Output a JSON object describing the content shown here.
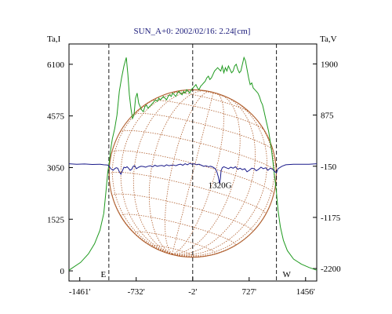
{
  "chart_data": {
    "type": "line",
    "title": "SUN_A+0: 2002/02/16: 2.24[cm]",
    "xlabel": "",
    "left_axis_label": "Ta,I",
    "right_axis_label": "Ta,V",
    "xlim": [
      -1600,
      1600
    ],
    "ylim_left": [
      -300,
      6700
    ],
    "ylim_right": [
      -2450,
      2300
    ],
    "x_ticks": [
      {
        "value": -1461,
        "label": "-1461'"
      },
      {
        "value": -732,
        "label": "-732'"
      },
      {
        "value": -2,
        "label": "-2'"
      },
      {
        "value": 727,
        "label": "727'"
      },
      {
        "value": 1456,
        "label": "1456'"
      }
    ],
    "left_ticks": [
      {
        "value": 0,
        "label": "0"
      },
      {
        "value": 1525,
        "label": "1525"
      },
      {
        "value": 3050,
        "label": "3050"
      },
      {
        "value": 4575,
        "label": "4575"
      },
      {
        "value": 6100,
        "label": "6100"
      }
    ],
    "right_ticks": [
      {
        "value": -2200,
        "label": "-2200"
      },
      {
        "value": -1175,
        "label": "-1175"
      },
      {
        "value": -150,
        "label": "-150"
      },
      {
        "value": 875,
        "label": "875"
      },
      {
        "value": 1900,
        "label": "1900"
      }
    ],
    "vertical_markers": [
      {
        "x": -1085,
        "label": "E"
      },
      {
        "x": -2,
        "label": ""
      },
      {
        "x": 1080,
        "label": "W"
      }
    ],
    "annotation": {
      "text": "1320G",
      "x": 350,
      "y_right": -400
    },
    "disk": {
      "center_x": -2,
      "radius_x": 1080,
      "color": "#b06030"
    },
    "series": [
      {
        "name": "",
        "axis": "left",
        "color": "#1f9a1f",
        "x": [
          -1600,
          -1450,
          -1350,
          -1270,
          -1200,
          -1150,
          -1120,
          -1100,
          -1080,
          -1060,
          -1040,
          -1010,
          -980,
          -950,
          -920,
          -890,
          -860,
          -840,
          -820,
          -800,
          -780,
          -760,
          -740,
          -720,
          -700,
          -680,
          -660,
          -640,
          -620,
          -600,
          -580,
          -560,
          -540,
          -520,
          -500,
          -480,
          -460,
          -440,
          -420,
          -400,
          -380,
          -360,
          -340,
          -320,
          -300,
          -280,
          -260,
          -240,
          -220,
          -200,
          -180,
          -160,
          -140,
          -120,
          -100,
          -80,
          -60,
          -40,
          -20,
          0,
          20,
          40,
          60,
          80,
          100,
          120,
          140,
          160,
          180,
          200,
          220,
          240,
          260,
          280,
          300,
          320,
          340,
          360,
          380,
          400,
          420,
          440,
          460,
          480,
          500,
          520,
          540,
          560,
          580,
          600,
          620,
          640,
          660,
          680,
          700,
          720,
          740,
          760,
          780,
          800,
          820,
          840,
          860,
          880,
          900,
          920,
          940,
          960,
          980,
          1000,
          1020,
          1040,
          1060,
          1080,
          1100,
          1130,
          1170,
          1220,
          1300,
          1400,
          1500,
          1600
        ],
        "y": [
          20,
          250,
          500,
          800,
          1200,
          1700,
          2400,
          2900,
          3200,
          3600,
          3900,
          4200,
          4600,
          5300,
          5700,
          6050,
          6300,
          5800,
          5200,
          4800,
          4500,
          4600,
          5100,
          5250,
          4950,
          4850,
          4750,
          4700,
          4850,
          4900,
          4800,
          4850,
          4900,
          4950,
          5000,
          5050,
          5000,
          5100,
          5050,
          5100,
          5150,
          5100,
          5050,
          5150,
          5200,
          5150,
          5250,
          5200,
          5150,
          5250,
          5300,
          5250,
          5200,
          5300,
          5250,
          5350,
          5300,
          5250,
          5350,
          5400,
          5450,
          5500,
          5400,
          5350,
          5450,
          5500,
          5550,
          5600,
          5700,
          5750,
          5650,
          5700,
          5800,
          5900,
          5950,
          6000,
          5950,
          5900,
          6050,
          5850,
          6000,
          5900,
          6050,
          5950,
          5850,
          5900,
          6050,
          6100,
          5950,
          5850,
          5900,
          6100,
          6300,
          6200,
          5950,
          5700,
          5500,
          5550,
          5400,
          5350,
          5300,
          5250,
          5150,
          5000,
          4900,
          4700,
          4500,
          4300,
          4100,
          3800,
          3500,
          3100,
          2700,
          2300,
          1800,
          1300,
          900,
          600,
          350,
          200,
          100,
          20
        ]
      },
      {
        "name": "",
        "axis": "right",
        "color": "#1a1a8a",
        "x": [
          -1600,
          -1500,
          -1400,
          -1300,
          -1200,
          -1150,
          -1100,
          -1080,
          -1060,
          -1030,
          -1010,
          -990,
          -970,
          -950,
          -930,
          -910,
          -890,
          -870,
          -850,
          -830,
          -810,
          -790,
          -770,
          -750,
          -730,
          -700,
          -670,
          -640,
          -610,
          -580,
          -550,
          -520,
          -490,
          -460,
          -430,
          -400,
          -370,
          -340,
          -310,
          -280,
          -250,
          -220,
          -190,
          -160,
          -130,
          -100,
          -70,
          -40,
          -10,
          20,
          50,
          80,
          110,
          140,
          170,
          200,
          230,
          260,
          290,
          310,
          330,
          345,
          355,
          365,
          380,
          400,
          430,
          460,
          490,
          520,
          550,
          580,
          610,
          640,
          670,
          700,
          730,
          760,
          790,
          820,
          850,
          880,
          910,
          940,
          970,
          1000,
          1030,
          1060,
          1080,
          1100,
          1150,
          1200,
          1300,
          1400,
          1500,
          1600
        ],
        "y": [
          -100,
          -110,
          -105,
          -115,
          -110,
          -120,
          -125,
          -150,
          -200,
          -230,
          -200,
          -180,
          -190,
          -260,
          -310,
          -240,
          -170,
          -180,
          -160,
          -190,
          -230,
          -210,
          -150,
          -140,
          -200,
          -170,
          -150,
          -155,
          -170,
          -150,
          -140,
          -160,
          -130,
          -150,
          -140,
          -135,
          -150,
          -120,
          -140,
          -130,
          -125,
          -140,
          -120,
          -110,
          -130,
          -100,
          -120,
          -90,
          -110,
          -100,
          -120,
          -110,
          -130,
          -150,
          -140,
          -160,
          -150,
          -170,
          -200,
          -260,
          -370,
          -500,
          -400,
          -240,
          -180,
          -160,
          -180,
          -200,
          -170,
          -190,
          -160,
          -210,
          -190,
          -220,
          -200,
          -260,
          -230,
          -190,
          -200,
          -240,
          -210,
          -170,
          -200,
          -180,
          -230,
          -190,
          -210,
          -260,
          -280,
          -200,
          -150,
          -120,
          -110,
          -110,
          -110,
          -100
        ]
      }
    ]
  }
}
